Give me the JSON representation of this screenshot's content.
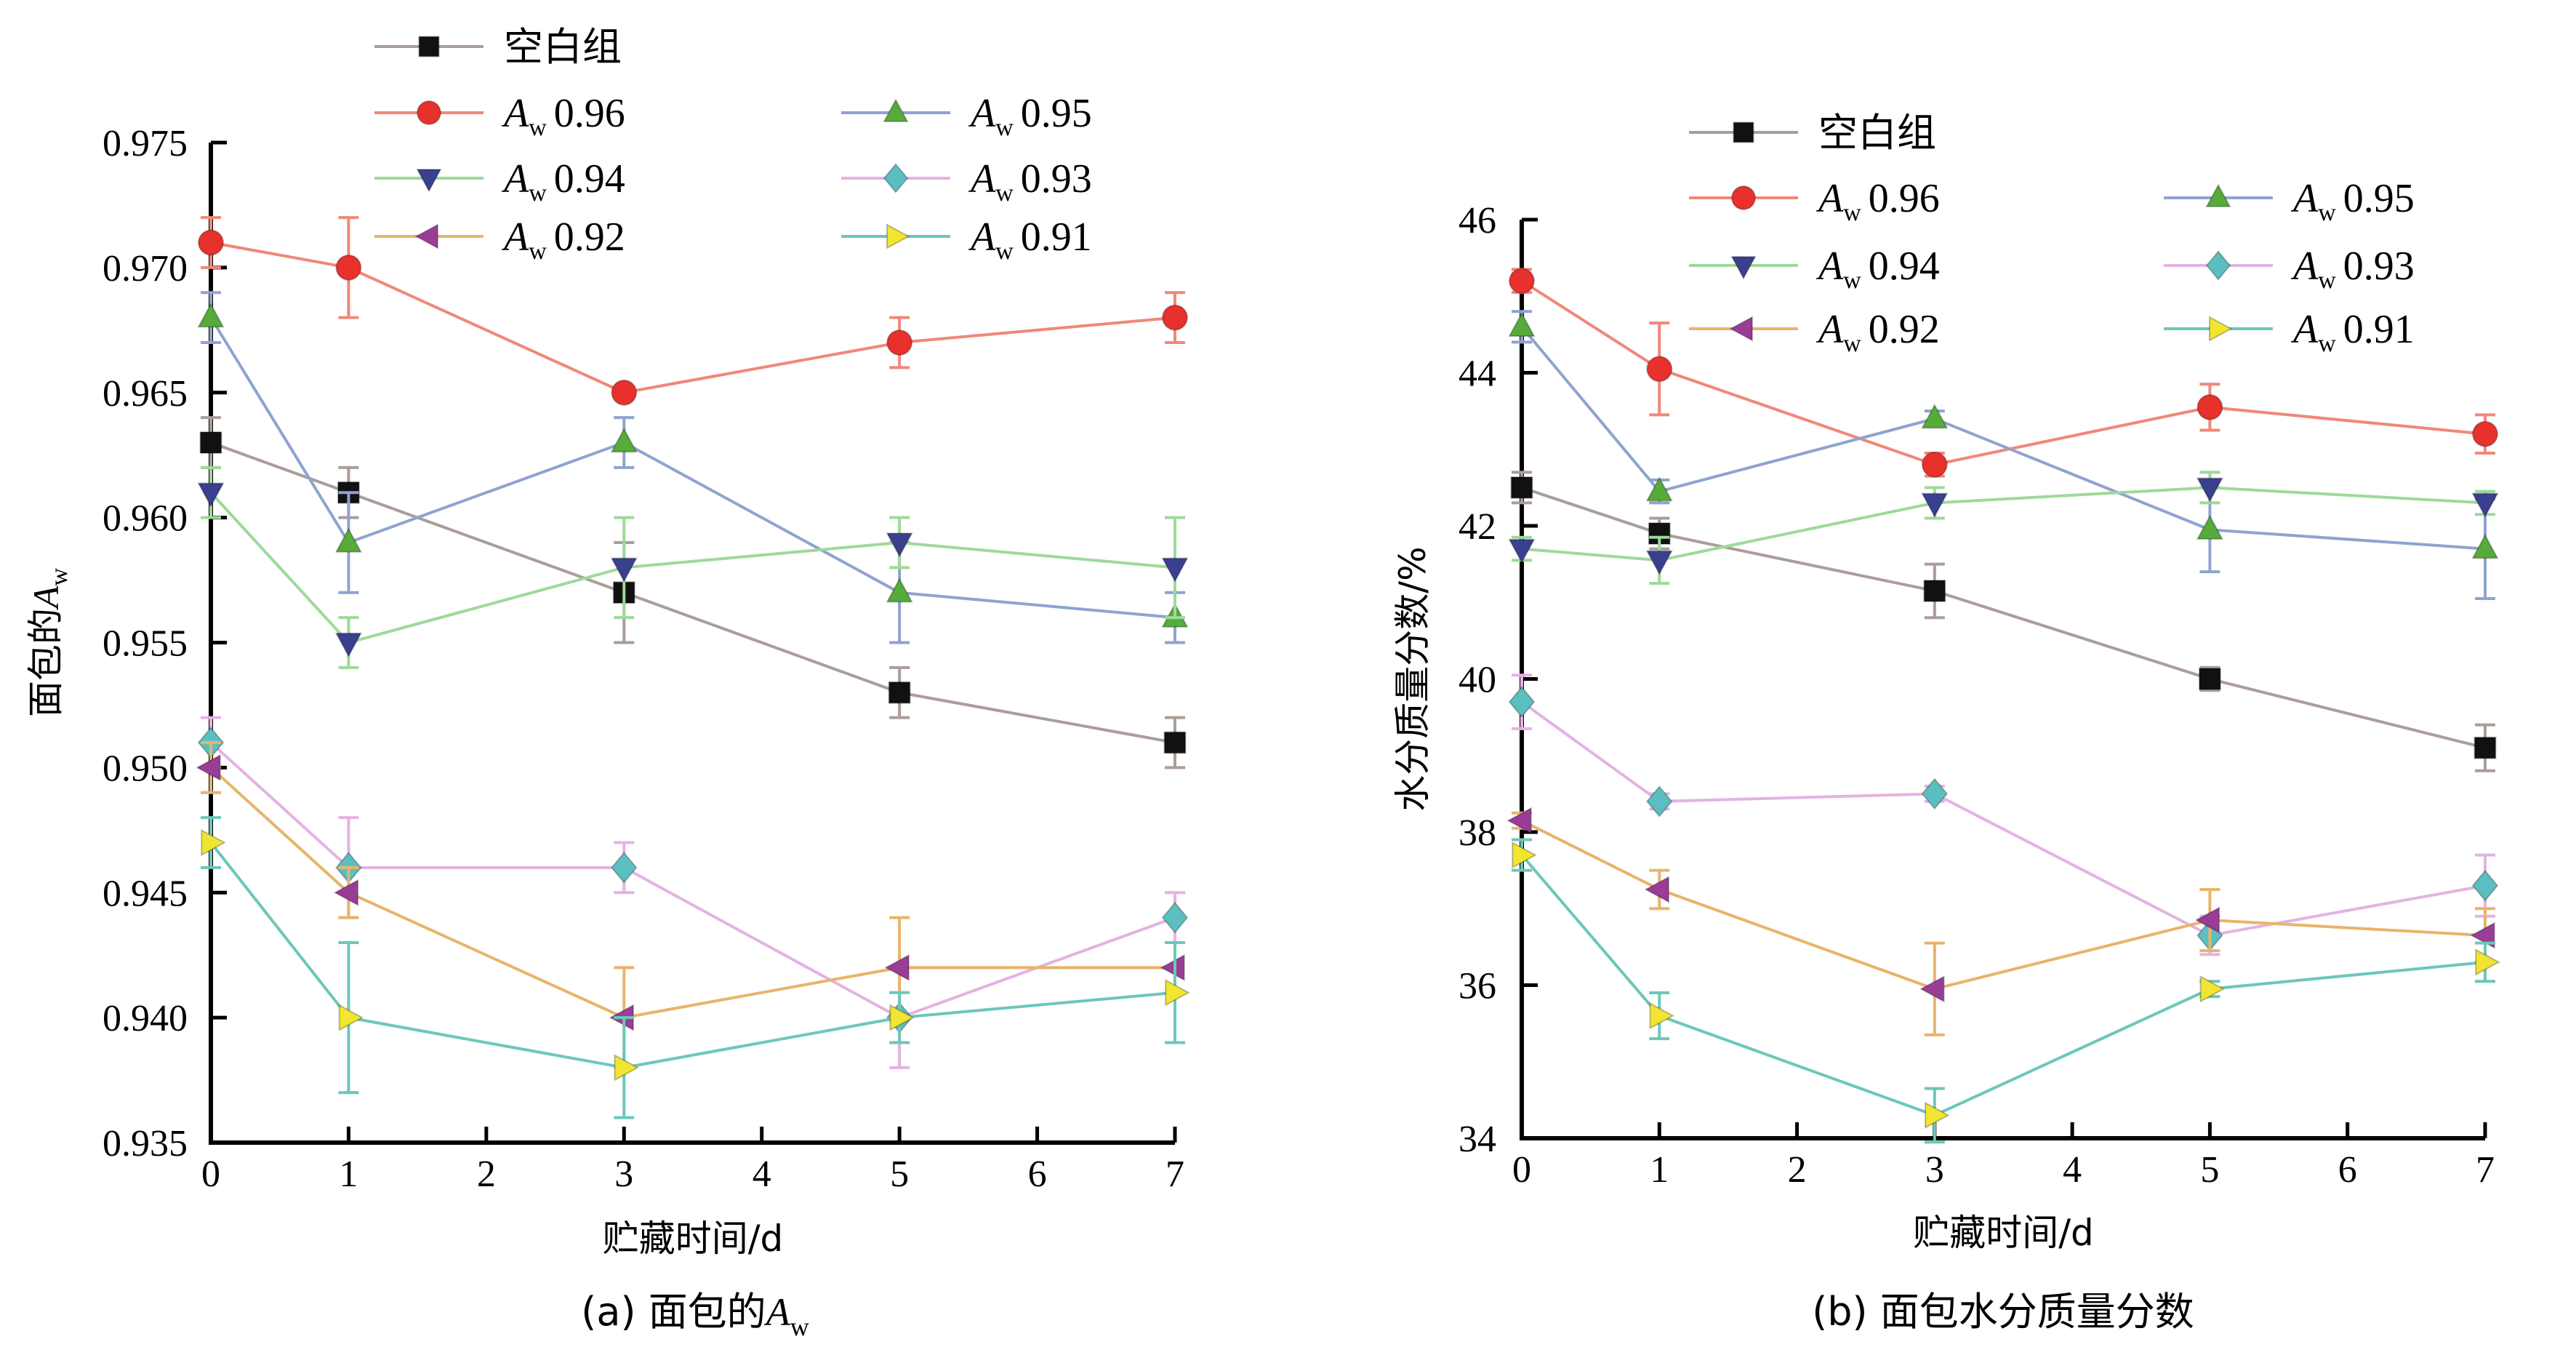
{
  "chart_data": [
    {
      "type": "line",
      "panel": "a",
      "caption_prefix": "(a) 面包的",
      "caption_symbol": "A",
      "caption_sub": "w",
      "ylabel_prefix": "面包的",
      "ylabel_symbol": "A",
      "ylabel_sub": "w",
      "xlabel": "贮藏时间/d",
      "xlim": [
        0,
        7
      ],
      "ylim": [
        0.935,
        0.975
      ],
      "x_ticks": [
        "0",
        "1",
        "2",
        "3",
        "4",
        "5",
        "6",
        "7"
      ],
      "y_ticks": [
        "0.935",
        "0.940",
        "0.945",
        "0.950",
        "0.955",
        "0.960",
        "0.965",
        "0.970",
        "0.975"
      ],
      "x": [
        0,
        1,
        3,
        5,
        7
      ],
      "legend_position": "top",
      "series": [
        {
          "name": "空白组",
          "name_symbol": "",
          "name_sub": "",
          "name_value": "",
          "color": "#ab9d98",
          "marker_color": "#111111",
          "marker": "square",
          "values": [
            0.963,
            0.961,
            0.957,
            0.953,
            0.951
          ],
          "errors": [
            0.001,
            0.001,
            0.002,
            0.001,
            0.001
          ]
        },
        {
          "name": "",
          "name_symbol": "A",
          "name_sub": "w",
          "name_value": "0.96",
          "color": "#f08878",
          "marker_color": "#e8312c",
          "marker": "circle",
          "values": [
            0.971,
            0.97,
            0.965,
            0.967,
            0.968
          ],
          "errors": [
            0.001,
            0.002,
            0.0,
            0.001,
            0.001
          ]
        },
        {
          "name": "",
          "name_symbol": "A",
          "name_sub": "w",
          "name_value": "0.95",
          "color": "#8fa3d1",
          "marker_color": "#56ab3a",
          "marker": "triangle-up",
          "values": [
            0.968,
            0.959,
            0.963,
            0.957,
            0.956
          ],
          "errors": [
            0.001,
            0.002,
            0.001,
            0.002,
            0.001
          ]
        },
        {
          "name": "",
          "name_symbol": "A",
          "name_sub": "w",
          "name_value": "0.94",
          "color": "#9ed99a",
          "marker_color": "#3a3f8f",
          "marker": "triangle-down",
          "values": [
            0.961,
            0.955,
            0.958,
            0.959,
            0.958
          ],
          "errors": [
            0.001,
            0.001,
            0.002,
            0.001,
            0.002
          ]
        },
        {
          "name": "",
          "name_symbol": "A",
          "name_sub": "w",
          "name_value": "0.93",
          "color": "#e3b3e3",
          "marker_color": "#5bbfc1",
          "marker": "diamond",
          "values": [
            0.951,
            0.946,
            0.946,
            0.94,
            0.944
          ],
          "errors": [
            0.001,
            0.002,
            0.001,
            0.002,
            0.001
          ]
        },
        {
          "name": "",
          "name_symbol": "A",
          "name_sub": "w",
          "name_value": "0.92",
          "color": "#e8b46a",
          "marker_color": "#9a3d97",
          "marker": "triangle-left",
          "values": [
            0.95,
            0.945,
            0.94,
            0.942,
            0.942
          ],
          "errors": [
            0.001,
            0.001,
            0.002,
            0.002,
            0.001
          ]
        },
        {
          "name": "",
          "name_symbol": "A",
          "name_sub": "w",
          "name_value": "0.91",
          "color": "#6cc7ba",
          "marker_color": "#f1e531",
          "marker": "triangle-right",
          "values": [
            0.947,
            0.94,
            0.938,
            0.94,
            0.941
          ],
          "errors": [
            0.001,
            0.003,
            0.002,
            0.001,
            0.002
          ]
        }
      ]
    },
    {
      "type": "line",
      "panel": "b",
      "caption_prefix": "(b) 面包水分质量分数",
      "caption_symbol": "",
      "caption_sub": "",
      "ylabel_prefix": "水分质量分数/%",
      "ylabel_symbol": "",
      "ylabel_sub": "",
      "xlabel": "贮藏时间/d",
      "xlim": [
        0,
        7
      ],
      "ylim": [
        34,
        46
      ],
      "x_ticks": [
        "0",
        "1",
        "2",
        "3",
        "4",
        "5",
        "6",
        "7"
      ],
      "y_ticks": [
        "34",
        "36",
        "38",
        "40",
        "42",
        "44",
        "46"
      ],
      "x": [
        0,
        1,
        3,
        5,
        7
      ],
      "legend_position": "top",
      "series": [
        {
          "name": "空白组",
          "name_symbol": "",
          "name_sub": "",
          "name_value": "",
          "color": "#ab9d98",
          "marker_color": "#111111",
          "marker": "square",
          "values": [
            42.5,
            41.9,
            41.15,
            40.0,
            39.1
          ],
          "errors": [
            0.2,
            0.2,
            0.35,
            0.15,
            0.3
          ]
        },
        {
          "name": "",
          "name_symbol": "A",
          "name_sub": "w",
          "name_value": "0.96",
          "color": "#f08878",
          "marker_color": "#e8312c",
          "marker": "circle",
          "values": [
            45.2,
            44.05,
            42.8,
            43.55,
            43.2
          ],
          "errors": [
            0.15,
            0.6,
            0.15,
            0.3,
            0.25
          ]
        },
        {
          "name": "",
          "name_symbol": "A",
          "name_sub": "w",
          "name_value": "0.95",
          "color": "#8fa3d1",
          "marker_color": "#56ab3a",
          "marker": "triangle-up",
          "values": [
            44.6,
            42.45,
            43.4,
            41.95,
            41.7
          ],
          "errors": [
            0.2,
            0.15,
            0.1,
            0.55,
            0.65
          ]
        },
        {
          "name": "",
          "name_symbol": "A",
          "name_sub": "w",
          "name_value": "0.94",
          "color": "#9ed99a",
          "marker_color": "#3a3f8f",
          "marker": "triangle-down",
          "values": [
            41.7,
            41.55,
            42.3,
            42.5,
            42.3
          ],
          "errors": [
            0.15,
            0.3,
            0.2,
            0.2,
            0.15
          ]
        },
        {
          "name": "",
          "name_symbol": "A",
          "name_sub": "w",
          "name_value": "0.93",
          "color": "#e3b3e3",
          "marker_color": "#5bbfc1",
          "marker": "diamond",
          "values": [
            39.7,
            38.4,
            38.5,
            36.65,
            37.3
          ],
          "errors": [
            0.35,
            0.1,
            0.1,
            0.25,
            0.4
          ]
        },
        {
          "name": "",
          "name_symbol": "A",
          "name_sub": "w",
          "name_value": "0.92",
          "color": "#e8b46a",
          "marker_color": "#9a3d97",
          "marker": "triangle-left",
          "values": [
            38.15,
            37.25,
            35.95,
            36.85,
            36.65
          ],
          "errors": [
            0.1,
            0.25,
            0.6,
            0.4,
            0.35
          ]
        },
        {
          "name": "",
          "name_symbol": "A",
          "name_sub": "w",
          "name_value": "0.91",
          "color": "#6cc7ba",
          "marker_color": "#f1e531",
          "marker": "triangle-right",
          "values": [
            37.7,
            35.6,
            34.3,
            35.95,
            36.3
          ],
          "errors": [
            0.2,
            0.3,
            0.35,
            0.1,
            0.25
          ]
        }
      ]
    }
  ]
}
